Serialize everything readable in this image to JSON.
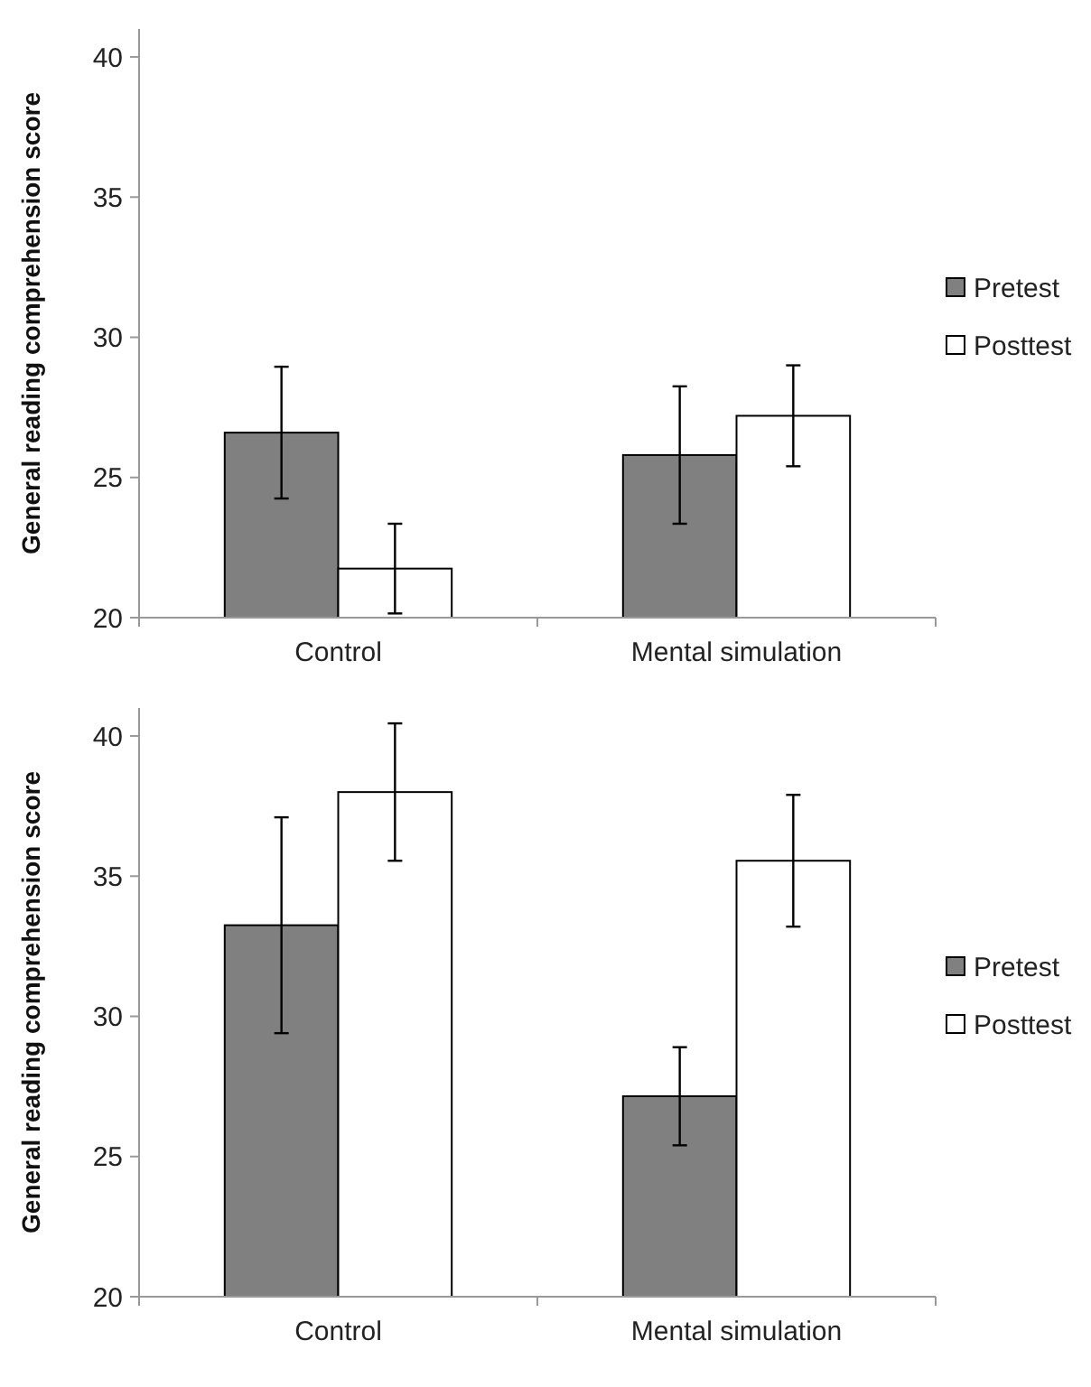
{
  "chart_data": [
    {
      "type": "bar",
      "ylabel": "General reading comprehension score",
      "categories": [
        "Control",
        "Mental simulation"
      ],
      "ylim": [
        20,
        41
      ],
      "yticks": [
        20,
        25,
        30,
        35,
        40
      ],
      "legend": "right",
      "grid": false,
      "series": [
        {
          "name": "Pretest",
          "color": "#808080",
          "values": [
            26.6,
            25.8
          ],
          "errors": [
            2.35,
            2.45
          ]
        },
        {
          "name": "Posttest",
          "color": "#ffffff",
          "values": [
            21.75,
            27.2
          ],
          "errors": [
            1.6,
            1.8
          ]
        }
      ]
    },
    {
      "type": "bar",
      "ylabel": "General reading comprehension score",
      "categories": [
        "Control",
        "Mental simulation"
      ],
      "ylim": [
        20,
        41
      ],
      "yticks": [
        20,
        25,
        30,
        35,
        40
      ],
      "legend": "right",
      "grid": false,
      "series": [
        {
          "name": "Pretest",
          "color": "#808080",
          "values": [
            33.25,
            27.15
          ],
          "errors": [
            3.85,
            1.75
          ]
        },
        {
          "name": "Posttest",
          "color": "#ffffff",
          "values": [
            38.0,
            35.55
          ],
          "errors": [
            2.45,
            2.35
          ]
        }
      ]
    }
  ]
}
